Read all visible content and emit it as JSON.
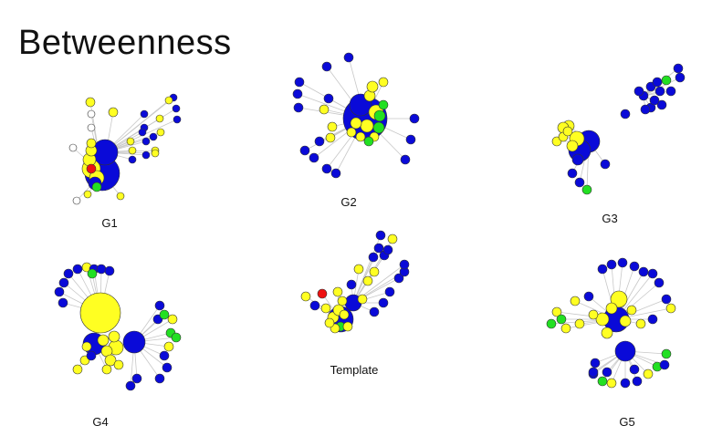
{
  "slide": {
    "title": "Betweenness"
  },
  "graphs": [
    {
      "id": "G1",
      "label": "G1"
    },
    {
      "id": "G2",
      "label": "G2"
    },
    {
      "id": "G3",
      "label": "G3"
    },
    {
      "id": "G4",
      "label": "G4"
    },
    {
      "id": "Template",
      "label": "Template"
    },
    {
      "id": "G5",
      "label": "G5"
    }
  ],
  "node_colors": {
    "blue": "#0a0ad8",
    "yellow": "#ffff22",
    "green": "#22e022",
    "red": "#ee1111",
    "white": "#ffffff"
  }
}
